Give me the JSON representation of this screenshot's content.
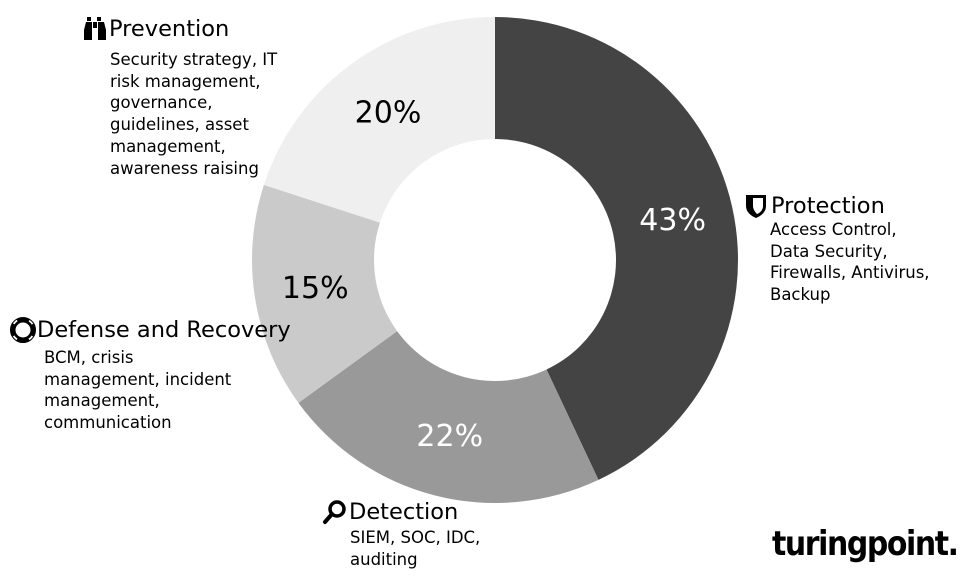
{
  "chart_data": {
    "type": "pie",
    "variant": "donut",
    "title": "",
    "start_angle": "12 o'clock, clockwise",
    "categories": [
      "Protection",
      "Detection",
      "Defense and Recovery",
      "Prevention"
    ],
    "values": [
      43,
      22,
      15,
      20
    ],
    "labels": [
      "43%",
      "22%",
      "15%",
      "20%"
    ],
    "colors": [
      "#444444",
      "#999999",
      "#cacaca",
      "#efefef"
    ],
    "label_colors": [
      "#ffffff",
      "#ffffff",
      "#000000",
      "#000000"
    ],
    "descriptions": [
      "Access Control, Data Security, Firewalls, Antivirus, Backup",
      "SIEM, SOC, IDC, auditing",
      "BCM, crisis management, incident management, communication",
      "Security strategy, IT risk management, governance, guidelines, asset management, awareness raising"
    ],
    "icons": [
      "shield-icon",
      "magnifier-icon",
      "lifebuoy-icon",
      "binoculars-icon"
    ]
  },
  "legend": {
    "protection": {
      "title": "Protection",
      "desc": "Access Control,\nData Security,\nFirewalls, Antivirus,\nBackup",
      "icon": "shield-icon"
    },
    "detection": {
      "title": "Detection",
      "desc": "SIEM, SOC, IDC,\nauditing",
      "icon": "magnifier-icon"
    },
    "defense": {
      "title": "Defense and Recovery",
      "desc": "BCM, crisis\nmanagement, incident\nmanagement,\ncommunication",
      "icon": "lifebuoy-icon"
    },
    "prevention": {
      "title": "Prevention",
      "desc": "Security strategy, IT\nrisk management,\ngovernance,\nguidelines, asset\nmanagement,\nawareness raising",
      "icon": "binoculars-icon"
    }
  },
  "brand": {
    "logo_text": "turingpoint."
  }
}
